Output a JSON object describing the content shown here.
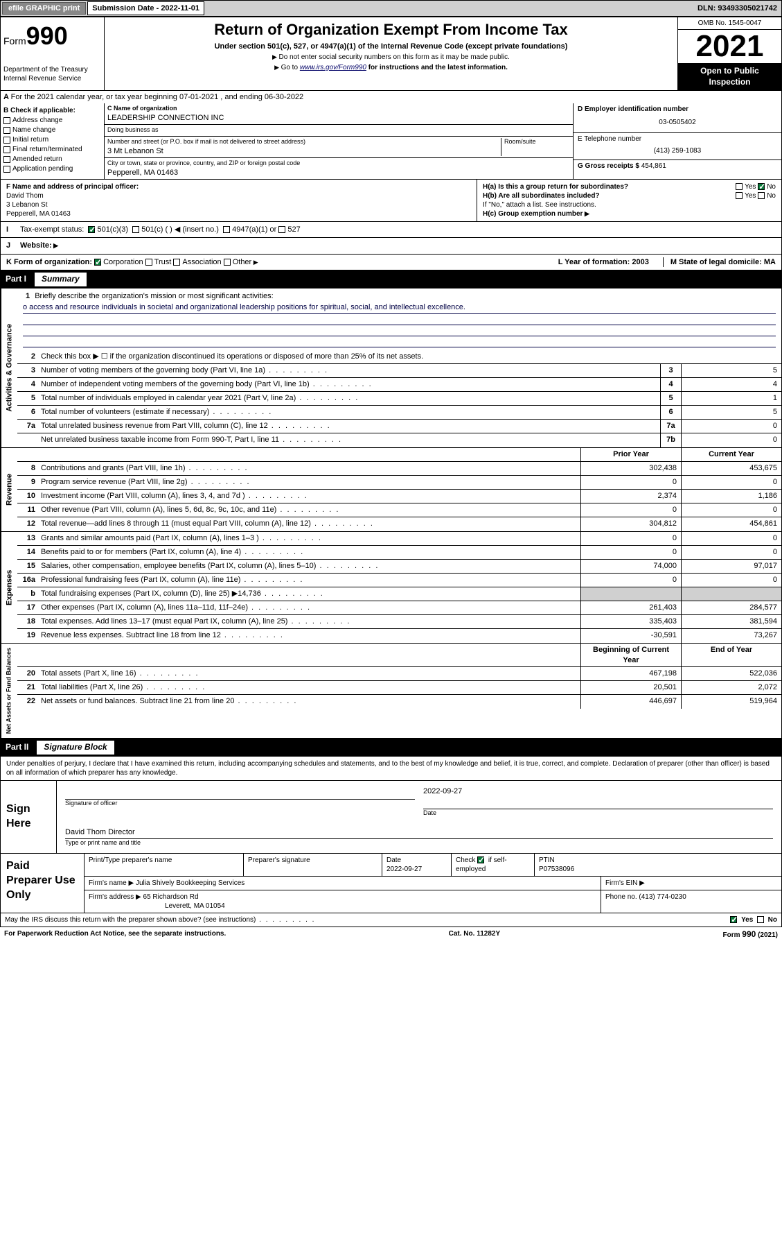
{
  "top": {
    "efile": "efile GRAPHIC print",
    "submission_label": "Submission Date - 2022-11-01",
    "dln": "DLN: 93493305021742"
  },
  "header": {
    "form_prefix": "Form",
    "form_num": "990",
    "dept": "Department of the Treasury",
    "irs": "Internal Revenue Service",
    "title": "Return of Organization Exempt From Income Tax",
    "sub": "Under section 501(c), 527, or 4947(a)(1) of the Internal Revenue Code (except private foundations)",
    "note1": "Do not enter social security numbers on this form as it may be made public.",
    "note2_pre": "Go to ",
    "note2_link": "www.irs.gov/Form990",
    "note2_post": " for instructions and the latest information.",
    "omb": "OMB No. 1545-0047",
    "year": "2021",
    "inspection": "Open to Public Inspection"
  },
  "rowA": "For the 2021 calendar year, or tax year beginning 07-01-2021  , and ending 06-30-2022",
  "b": {
    "header": "B Check if applicable:",
    "addr": "Address change",
    "name": "Name change",
    "initial": "Initial return",
    "final": "Final return/terminated",
    "amended": "Amended return",
    "app": "Application pending"
  },
  "c": {
    "name_label": "C Name of organization",
    "name": "LEADERSHIP CONNECTION INC",
    "dba_label": "Doing business as",
    "dba": "",
    "street_label": "Number and street (or P.O. box if mail is not delivered to street address)",
    "room_label": "Room/suite",
    "street": "3 Mt Lebanon St",
    "city_label": "City or town, state or province, country, and ZIP or foreign postal code",
    "city": "Pepperell, MA  01463"
  },
  "d": {
    "ein_label": "D Employer identification number",
    "ein": "03-0505402",
    "phone_label": "E Telephone number",
    "phone": "(413) 259-1083",
    "gross_label": "G Gross receipts $",
    "gross": "454,861"
  },
  "f": {
    "label": "F  Name and address of principal officer:",
    "name": "David Thom",
    "street": "3 Lebanon St",
    "city": "Pepperell, MA  01463"
  },
  "h": {
    "a": "H(a)  Is this a group return for subordinates?",
    "b": "H(b)  Are all subordinates included?",
    "note": "If \"No,\" attach a list. See instructions.",
    "c": "H(c)  Group exemption number"
  },
  "i": {
    "label": "Tax-exempt status:",
    "c3": "501(c)(3)",
    "c": "501(c) (  ) ◀ (insert no.)",
    "a1": "4947(a)(1) or",
    "527": "527"
  },
  "j": {
    "label": "Website:"
  },
  "k": {
    "label": "K Form of organization:",
    "corp": "Corporation",
    "trust": "Trust",
    "assoc": "Association",
    "other": "Other",
    "l": "L Year of formation: 2003",
    "m": "M State of legal domicile: MA"
  },
  "part1": {
    "num": "Part I",
    "title": "Summary",
    "q1": "Briefly describe the organization's mission or most significant activities:",
    "mission": "o access and resource individuals in societal and organizational leadership positions for spiritual, social, and intellectual excellence.",
    "q2": "Check this box ▶ ☐  if the organization discontinued its operations or disposed of more than 25% of its net assets.",
    "rows_gov": [
      {
        "n": "3",
        "label": "Number of voting members of the governing body (Part VI, line 1a)",
        "box": "3",
        "val": "5"
      },
      {
        "n": "4",
        "label": "Number of independent voting members of the governing body (Part VI, line 1b)",
        "box": "4",
        "val": "4"
      },
      {
        "n": "5",
        "label": "Total number of individuals employed in calendar year 2021 (Part V, line 2a)",
        "box": "5",
        "val": "1"
      },
      {
        "n": "6",
        "label": "Total number of volunteers (estimate if necessary)",
        "box": "6",
        "val": "5"
      },
      {
        "n": "7a",
        "label": "Total unrelated business revenue from Part VIII, column (C), line 12",
        "box": "7a",
        "val": "0"
      },
      {
        "n": "",
        "label": "Net unrelated business taxable income from Form 990-T, Part I, line 11",
        "box": "7b",
        "val": "0"
      }
    ],
    "col_prior": "Prior Year",
    "col_curr": "Current Year",
    "rows_rev": [
      {
        "n": "8",
        "label": "Contributions and grants (Part VIII, line 1h)",
        "prior": "302,438",
        "curr": "453,675"
      },
      {
        "n": "9",
        "label": "Program service revenue (Part VIII, line 2g)",
        "prior": "0",
        "curr": "0"
      },
      {
        "n": "10",
        "label": "Investment income (Part VIII, column (A), lines 3, 4, and 7d )",
        "prior": "2,374",
        "curr": "1,186"
      },
      {
        "n": "11",
        "label": "Other revenue (Part VIII, column (A), lines 5, 6d, 8c, 9c, 10c, and 11e)",
        "prior": "0",
        "curr": "0"
      },
      {
        "n": "12",
        "label": "Total revenue—add lines 8 through 11 (must equal Part VIII, column (A), line 12)",
        "prior": "304,812",
        "curr": "454,861"
      }
    ],
    "rows_exp": [
      {
        "n": "13",
        "label": "Grants and similar amounts paid (Part IX, column (A), lines 1–3 )",
        "prior": "0",
        "curr": "0"
      },
      {
        "n": "14",
        "label": "Benefits paid to or for members (Part IX, column (A), line 4)",
        "prior": "0",
        "curr": "0"
      },
      {
        "n": "15",
        "label": "Salaries, other compensation, employee benefits (Part IX, column (A), lines 5–10)",
        "prior": "74,000",
        "curr": "97,017"
      },
      {
        "n": "16a",
        "label": "Professional fundraising fees (Part IX, column (A), line 11e)",
        "prior": "0",
        "curr": "0"
      },
      {
        "n": "b",
        "label": "Total fundraising expenses (Part IX, column (D), line 25) ▶14,736",
        "prior": "",
        "curr": "",
        "shade": true
      },
      {
        "n": "17",
        "label": "Other expenses (Part IX, column (A), lines 11a–11d, 11f–24e)",
        "prior": "261,403",
        "curr": "284,577"
      },
      {
        "n": "18",
        "label": "Total expenses. Add lines 13–17 (must equal Part IX, column (A), line 25)",
        "prior": "335,403",
        "curr": "381,594"
      },
      {
        "n": "19",
        "label": "Revenue less expenses. Subtract line 18 from line 12",
        "prior": "-30,591",
        "curr": "73,267"
      }
    ],
    "col_begin": "Beginning of Current Year",
    "col_end": "End of Year",
    "rows_net": [
      {
        "n": "20",
        "label": "Total assets (Part X, line 16)",
        "prior": "467,198",
        "curr": "522,036"
      },
      {
        "n": "21",
        "label": "Total liabilities (Part X, line 26)",
        "prior": "20,501",
        "curr": "2,072"
      },
      {
        "n": "22",
        "label": "Net assets or fund balances. Subtract line 21 from line 20",
        "prior": "446,697",
        "curr": "519,964"
      }
    ],
    "vtabs": {
      "gov": "Activities & Governance",
      "rev": "Revenue",
      "exp": "Expenses",
      "net": "Net Assets or Fund Balances"
    }
  },
  "part2": {
    "num": "Part II",
    "title": "Signature Block",
    "intro": "Under penalties of perjury, I declare that I have examined this return, including accompanying schedules and statements, and to the best of my knowledge and belief, it is true, correct, and complete. Declaration of preparer (other than officer) is based on all information of which preparer has any knowledge.",
    "sign_here": "Sign Here",
    "sig_officer": "Signature of officer",
    "sig_date": "2022-09-27",
    "date_label": "Date",
    "officer_name": "David Thom  Director",
    "name_label": "Type or print name and title",
    "paid": "Paid Preparer Use Only",
    "prep_name_label": "Print/Type preparer's name",
    "prep_sig_label": "Preparer's signature",
    "prep_date_label": "Date",
    "prep_date": "2022-09-27",
    "check_self": "Check ☑ if self-employed",
    "ptin_label": "PTIN",
    "ptin": "P07538096",
    "firm_name_label": "Firm's name   ▶",
    "firm_name": "Julia Shively Bookkeeping Services",
    "firm_ein_label": "Firm's EIN ▶",
    "firm_addr_label": "Firm's address ▶",
    "firm_addr1": "65 Richardson Rd",
    "firm_addr2": "Leverett, MA  01054",
    "firm_phone_label": "Phone no.",
    "firm_phone": "(413) 774-0230",
    "discuss": "May the IRS discuss this return with the preparer shown above? (see instructions)",
    "yes": "Yes",
    "no": "No"
  },
  "footer": {
    "pra": "For Paperwork Reduction Act Notice, see the separate instructions.",
    "cat": "Cat. No. 11282Y",
    "form": "Form 990 (2021)"
  }
}
